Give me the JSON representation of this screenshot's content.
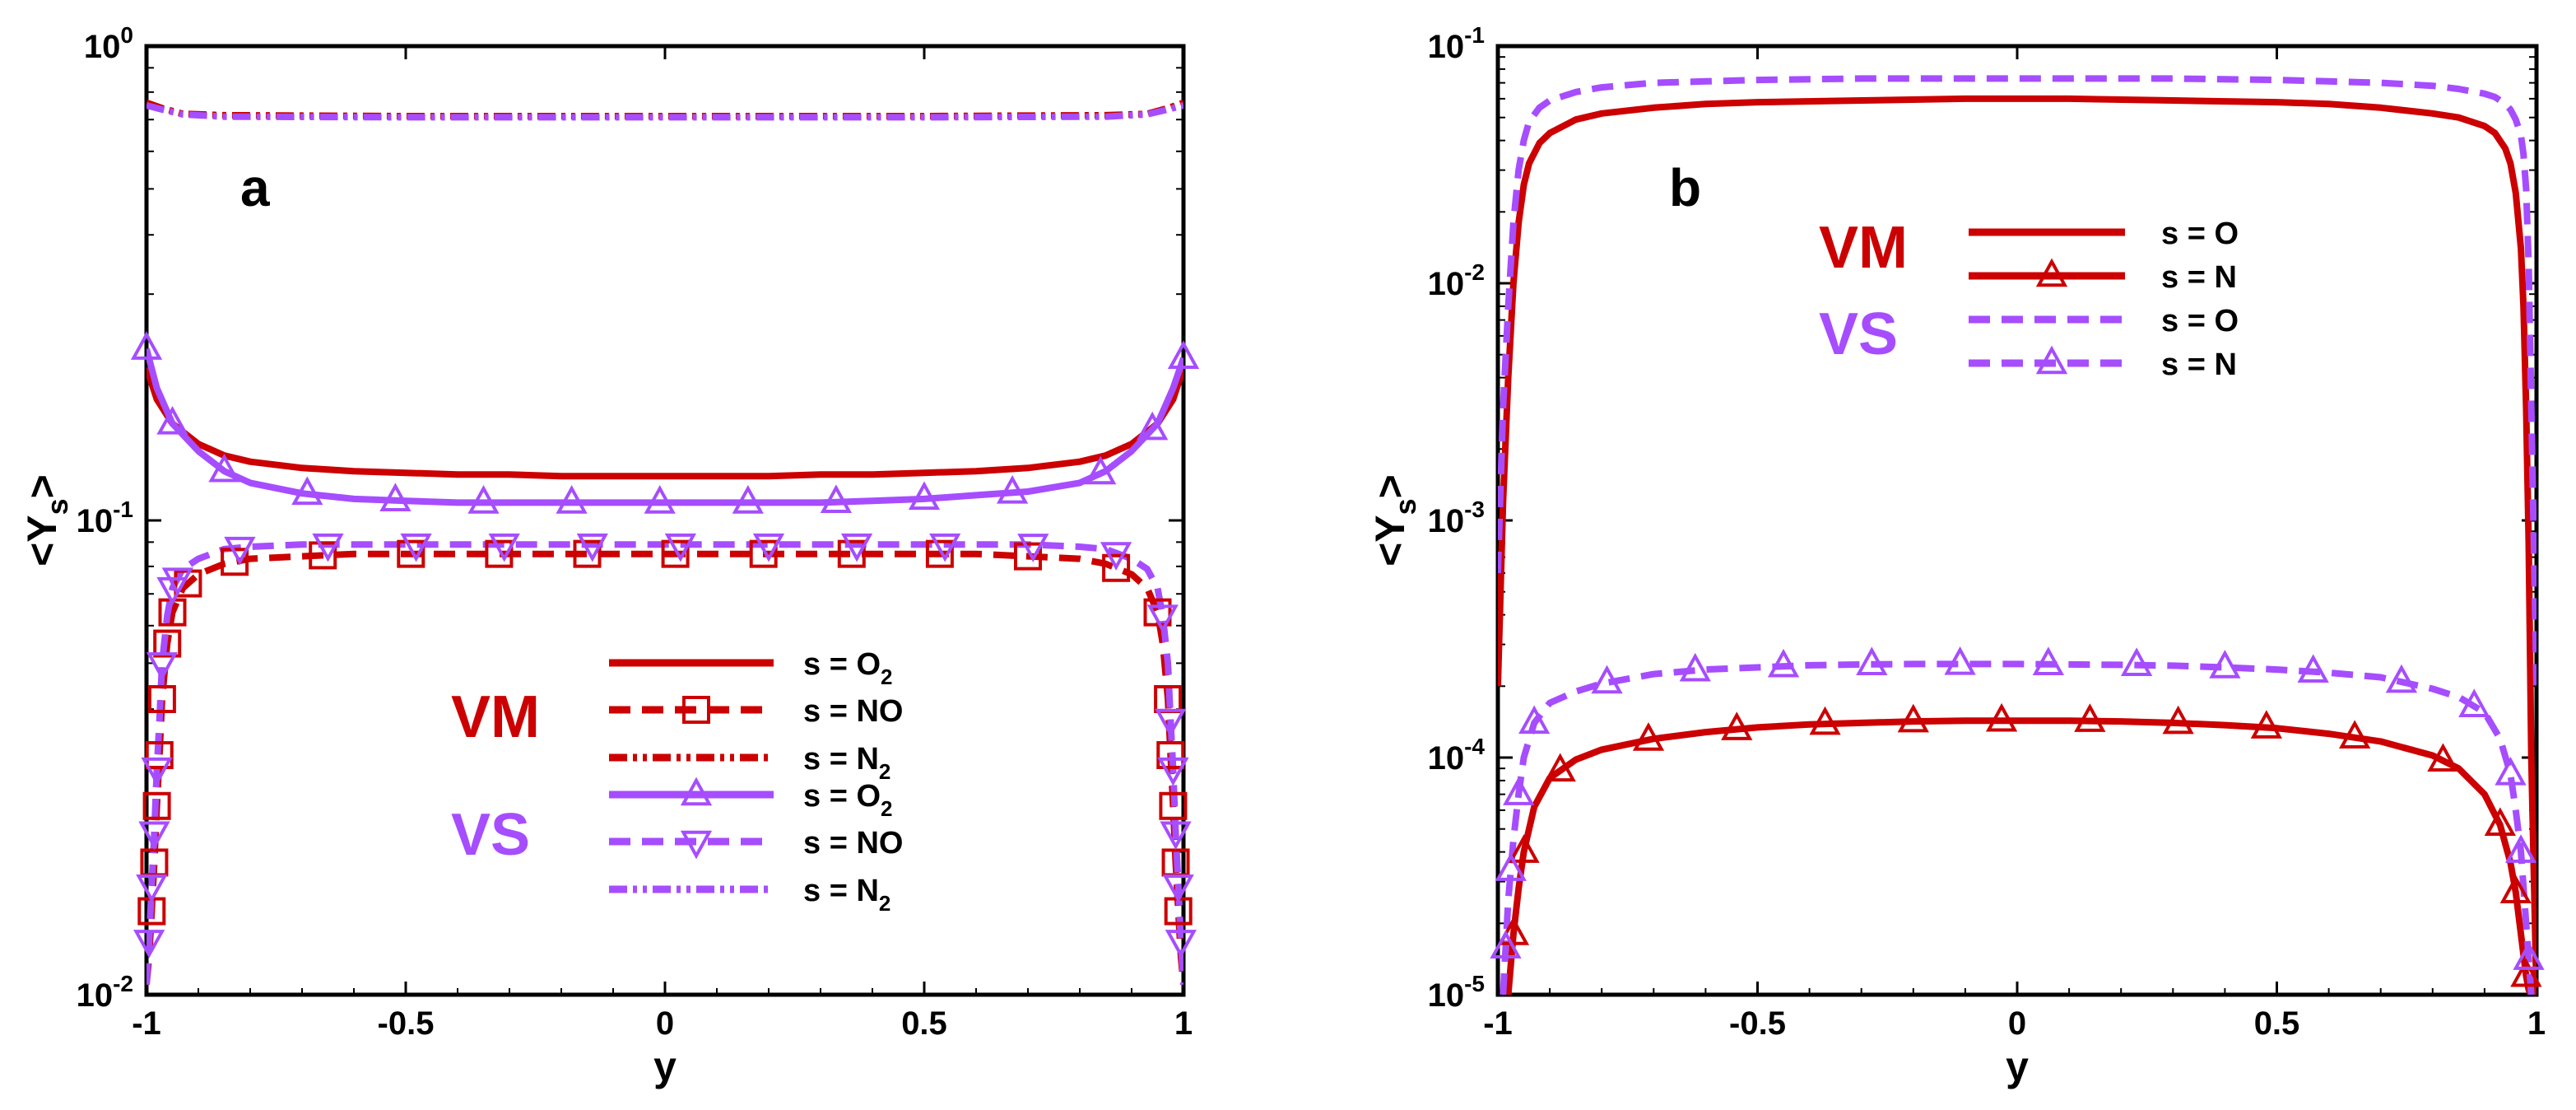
{
  "colors": {
    "vm": "#cc0000",
    "vs": "#a64dff",
    "axis": "#000000"
  },
  "chart_data": [
    {
      "panel_label": "a",
      "type": "line",
      "xlabel": "y",
      "ylabel_main": "<Y",
      "ylabel_sub": "s",
      "ylabel_tail": ">",
      "xlim": [
        -1,
        1
      ],
      "ylim": [
        0.01,
        1
      ],
      "yscale": "log",
      "xticks": [
        -1,
        -0.5,
        0,
        0.5,
        1
      ],
      "xtick_labels": [
        "-1",
        "-0.5",
        "0",
        "0.5",
        "1"
      ],
      "ytick_values": [
        0.01,
        0.1,
        1
      ],
      "ytick_labels": [
        {
          "base": "10",
          "exp": "-2"
        },
        {
          "base": "10",
          "exp": "-1"
        },
        {
          "base": "10",
          "exp": "0"
        }
      ],
      "legend_groups": [
        {
          "label": "VM",
          "color": "#cc0000"
        },
        {
          "label": "VS",
          "color": "#a64dff"
        }
      ],
      "series": [
        {
          "group": "VM",
          "name": "s = O2",
          "label_main": "s = O",
          "label_sub": "2",
          "color": "#cc0000",
          "style": "solid",
          "marker": "none",
          "x": [
            -1,
            -0.98,
            -0.95,
            -0.9,
            -0.85,
            -0.8,
            -0.7,
            -0.6,
            -0.5,
            -0.4,
            -0.3,
            -0.2,
            -0.1,
            0,
            0.1,
            0.2,
            0.3,
            0.4,
            0.5,
            0.6,
            0.7,
            0.8,
            0.85,
            0.9,
            0.95,
            0.98,
            1
          ],
          "y": [
            0.21,
            0.18,
            0.16,
            0.145,
            0.137,
            0.133,
            0.129,
            0.127,
            0.126,
            0.125,
            0.125,
            0.124,
            0.124,
            0.124,
            0.124,
            0.124,
            0.125,
            0.125,
            0.126,
            0.127,
            0.129,
            0.133,
            0.137,
            0.145,
            0.16,
            0.18,
            0.21
          ]
        },
        {
          "group": "VM",
          "name": "s = NO",
          "label_main": "s = NO",
          "label_sub": "",
          "color": "#cc0000",
          "style": "dashed",
          "marker": "square",
          "x": [
            -1,
            -0.995,
            -0.99,
            -0.985,
            -0.98,
            -0.975,
            -0.97,
            -0.96,
            -0.95,
            -0.93,
            -0.9,
            -0.85,
            -0.8,
            -0.7,
            -0.6,
            -0.5,
            -0.4,
            -0.3,
            -0.2,
            -0.1,
            0,
            0.1,
            0.2,
            0.3,
            0.4,
            0.5,
            0.6,
            0.7,
            0.8,
            0.85,
            0.9,
            0.93,
            0.95,
            0.96,
            0.97,
            0.975,
            0.98,
            0.985,
            0.99,
            0.995,
            1
          ],
          "y": [
            0.0105,
            0.012,
            0.015,
            0.019,
            0.025,
            0.032,
            0.042,
            0.055,
            0.064,
            0.072,
            0.077,
            0.081,
            0.083,
            0.084,
            0.085,
            0.085,
            0.085,
            0.085,
            0.085,
            0.085,
            0.085,
            0.085,
            0.085,
            0.085,
            0.085,
            0.085,
            0.085,
            0.084,
            0.083,
            0.081,
            0.077,
            0.072,
            0.064,
            0.055,
            0.042,
            0.032,
            0.025,
            0.019,
            0.015,
            0.012,
            0.0105
          ],
          "marker_x": [
            -0.99,
            -0.985,
            -0.98,
            -0.975,
            -0.97,
            -0.96,
            -0.95,
            -0.92,
            -0.83,
            -0.66,
            -0.49,
            -0.32,
            -0.15,
            0.02,
            0.19,
            0.36,
            0.53,
            0.7,
            0.87,
            0.95,
            0.97,
            0.975,
            0.98,
            0.985,
            0.99
          ]
        },
        {
          "group": "VM",
          "name": "s = N2",
          "label_main": "s = N",
          "label_sub": "2",
          "color": "#cc0000",
          "style": "dashdotdot",
          "marker": "none",
          "x": [
            -1,
            -0.97,
            -0.93,
            -0.85,
            -0.5,
            0,
            0.5,
            0.85,
            0.93,
            0.97,
            1
          ],
          "y": [
            0.76,
            0.74,
            0.72,
            0.715,
            0.712,
            0.712,
            0.712,
            0.715,
            0.72,
            0.74,
            0.76
          ]
        },
        {
          "group": "VS",
          "name": "s = O2",
          "label_main": "s = O",
          "label_sub": "2",
          "color": "#a64dff",
          "style": "solid",
          "marker": "triangle-up",
          "x": [
            -1,
            -0.98,
            -0.95,
            -0.9,
            -0.85,
            -0.8,
            -0.7,
            -0.6,
            -0.5,
            -0.4,
            -0.3,
            -0.2,
            -0.1,
            0,
            0.1,
            0.2,
            0.3,
            0.4,
            0.5,
            0.6,
            0.7,
            0.8,
            0.85,
            0.9,
            0.95,
            0.98,
            1
          ],
          "y": [
            0.23,
            0.19,
            0.16,
            0.14,
            0.127,
            0.12,
            0.114,
            0.111,
            0.11,
            0.109,
            0.109,
            0.109,
            0.109,
            0.109,
            0.109,
            0.109,
            0.109,
            0.11,
            0.111,
            0.113,
            0.115,
            0.12,
            0.127,
            0.14,
            0.16,
            0.19,
            0.22
          ],
          "marker_x": [
            -1,
            -0.95,
            -0.85,
            -0.69,
            -0.52,
            -0.35,
            -0.18,
            -0.01,
            0.16,
            0.33,
            0.5,
            0.67,
            0.84,
            0.94,
            1
          ]
        },
        {
          "group": "VS",
          "name": "s = NO",
          "label_main": "s = NO",
          "label_sub": "",
          "color": "#a64dff",
          "style": "dashed",
          "marker": "triangle-down",
          "x": [
            -1,
            -0.995,
            -0.99,
            -0.985,
            -0.98,
            -0.975,
            -0.97,
            -0.96,
            -0.95,
            -0.93,
            -0.9,
            -0.85,
            -0.8,
            -0.7,
            -0.6,
            -0.5,
            -0.4,
            -0.3,
            -0.2,
            -0.1,
            0,
            0.1,
            0.2,
            0.3,
            0.4,
            0.5,
            0.6,
            0.7,
            0.8,
            0.85,
            0.9,
            0.93,
            0.95,
            0.96,
            0.97,
            0.975,
            0.98,
            0.985,
            0.99,
            0.995,
            1
          ],
          "y": [
            0.0105,
            0.013,
            0.017,
            0.022,
            0.03,
            0.038,
            0.05,
            0.063,
            0.072,
            0.079,
            0.083,
            0.087,
            0.088,
            0.089,
            0.089,
            0.089,
            0.089,
            0.089,
            0.089,
            0.089,
            0.089,
            0.089,
            0.089,
            0.089,
            0.089,
            0.089,
            0.089,
            0.089,
            0.088,
            0.087,
            0.083,
            0.079,
            0.072,
            0.063,
            0.05,
            0.038,
            0.03,
            0.022,
            0.017,
            0.013,
            0.0105
          ],
          "marker_x": [
            -0.995,
            -0.99,
            -0.985,
            -0.98,
            -0.97,
            -0.95,
            -0.94,
            -0.82,
            -0.65,
            -0.48,
            -0.31,
            -0.14,
            0.03,
            0.2,
            0.37,
            0.54,
            0.71,
            0.87,
            0.96,
            0.975,
            0.98,
            0.985,
            0.99,
            0.995
          ]
        },
        {
          "group": "VS",
          "name": "s = N2",
          "label_main": "s = N",
          "label_sub": "2",
          "color": "#a64dff",
          "style": "dashdotdot",
          "marker": "none",
          "x": [
            -1,
            -0.97,
            -0.93,
            -0.85,
            -0.5,
            0,
            0.5,
            0.85,
            0.93,
            0.97,
            1
          ],
          "y": [
            0.75,
            0.735,
            0.718,
            0.71,
            0.708,
            0.708,
            0.708,
            0.71,
            0.718,
            0.735,
            0.75
          ]
        }
      ]
    },
    {
      "panel_label": "b",
      "type": "line",
      "xlabel": "y",
      "ylabel_main": "<Y",
      "ylabel_sub": "s",
      "ylabel_tail": ">",
      "xlim": [
        -1,
        1
      ],
      "ylim": [
        1e-05,
        0.1
      ],
      "yscale": "log",
      "xticks": [
        -1,
        -0.5,
        0,
        0.5,
        1
      ],
      "xtick_labels": [
        "-1",
        "-0.5",
        "0",
        "0.5",
        "1"
      ],
      "ytick_values": [
        1e-05,
        0.0001,
        0.001,
        0.01,
        0.1
      ],
      "ytick_labels": [
        {
          "base": "10",
          "exp": "-5"
        },
        {
          "base": "10",
          "exp": "-4"
        },
        {
          "base": "10",
          "exp": "-3"
        },
        {
          "base": "10",
          "exp": "-2"
        },
        {
          "base": "10",
          "exp": "-1"
        }
      ],
      "legend_groups": [
        {
          "label": "VM",
          "color": "#cc0000"
        },
        {
          "label": "VS",
          "color": "#a64dff"
        }
      ],
      "series": [
        {
          "group": "VM",
          "name": "s = O",
          "label_main": "s = O",
          "label_sub": "",
          "color": "#cc0000",
          "style": "solid",
          "marker": "none",
          "x": [
            -1,
            -0.99,
            -0.98,
            -0.97,
            -0.96,
            -0.95,
            -0.94,
            -0.92,
            -0.9,
            -0.85,
            -0.8,
            -0.7,
            -0.6,
            -0.5,
            -0.3,
            -0.1,
            0,
            0.1,
            0.3,
            0.5,
            0.6,
            0.7,
            0.8,
            0.85,
            0.9,
            0.92,
            0.94,
            0.95,
            0.96,
            0.97,
            0.975,
            0.98,
            0.985,
            0.99,
            1
          ],
          "y": [
            0.0002,
            0.0012,
            0.004,
            0.01,
            0.018,
            0.026,
            0.032,
            0.039,
            0.043,
            0.049,
            0.052,
            0.055,
            0.057,
            0.058,
            0.059,
            0.06,
            0.06,
            0.06,
            0.059,
            0.058,
            0.057,
            0.055,
            0.052,
            0.05,
            0.046,
            0.043,
            0.037,
            0.032,
            0.024,
            0.014,
            0.008,
            0.003,
            0.0008,
            0.0001,
            1e-05
          ]
        },
        {
          "group": "VM",
          "name": "s = N",
          "label_main": "s = N",
          "label_sub": "",
          "color": "#cc0000",
          "style": "solid",
          "marker": "triangle-up",
          "x": [
            -0.98,
            -0.97,
            -0.96,
            -0.95,
            -0.93,
            -0.9,
            -0.85,
            -0.8,
            -0.7,
            -0.6,
            -0.5,
            -0.4,
            -0.3,
            -0.2,
            -0.1,
            0,
            0.1,
            0.2,
            0.3,
            0.4,
            0.5,
            0.6,
            0.7,
            0.8,
            0.85,
            0.9,
            0.93,
            0.95,
            0.96,
            0.97,
            0.98,
            0.985,
            0.99
          ],
          "y": [
            1e-05,
            1.8e-05,
            2.8e-05,
            4e-05,
            6.2e-05,
            8.2e-05,
            9.8e-05,
            0.000108,
            0.00012,
            0.000128,
            0.000134,
            0.000138,
            0.00014,
            0.000142,
            0.000143,
            0.000143,
            0.000143,
            0.000142,
            0.00014,
            0.000137,
            0.000133,
            0.000126,
            0.000117,
            0.000102,
            9e-05,
            7e-05,
            5.2e-05,
            3.6e-05,
            2.7e-05,
            1.8e-05,
            1.2e-05,
            1.05e-05,
            1e-05
          ],
          "marker_x": [
            -0.97,
            -0.95,
            -0.88,
            -0.71,
            -0.54,
            -0.37,
            -0.2,
            -0.03,
            0.14,
            0.31,
            0.48,
            0.65,
            0.82,
            0.93,
            0.96,
            0.98
          ]
        },
        {
          "group": "VS",
          "name": "s = O",
          "label_main": "s = O",
          "label_sub": "",
          "color": "#a64dff",
          "style": "dashed",
          "marker": "none",
          "x": [
            -1,
            -0.99,
            -0.98,
            -0.97,
            -0.96,
            -0.95,
            -0.94,
            -0.92,
            -0.9,
            -0.85,
            -0.8,
            -0.7,
            -0.6,
            -0.5,
            -0.3,
            -0.1,
            0,
            0.1,
            0.3,
            0.5,
            0.6,
            0.7,
            0.8,
            0.85,
            0.9,
            0.92,
            0.94,
            0.95,
            0.96,
            0.97,
            0.975,
            0.98,
            0.985,
            0.99,
            1
          ],
          "y": [
            0.0006,
            0.003,
            0.008,
            0.018,
            0.03,
            0.04,
            0.048,
            0.055,
            0.059,
            0.064,
            0.067,
            0.07,
            0.071,
            0.072,
            0.073,
            0.073,
            0.073,
            0.073,
            0.073,
            0.072,
            0.071,
            0.07,
            0.068,
            0.066,
            0.063,
            0.061,
            0.057,
            0.054,
            0.049,
            0.042,
            0.035,
            0.025,
            0.012,
            0.003,
            0.0002
          ]
        },
        {
          "group": "VS",
          "name": "s = N",
          "label_main": "s = N",
          "label_sub": "",
          "color": "#a64dff",
          "style": "dashed",
          "marker": "triangle-up",
          "x": [
            -0.99,
            -0.98,
            -0.97,
            -0.96,
            -0.95,
            -0.93,
            -0.9,
            -0.85,
            -0.8,
            -0.7,
            -0.6,
            -0.5,
            -0.4,
            -0.3,
            -0.2,
            -0.1,
            0,
            0.1,
            0.2,
            0.3,
            0.4,
            0.5,
            0.6,
            0.7,
            0.8,
            0.85,
            0.9,
            0.93,
            0.95,
            0.96,
            0.97,
            0.98,
            0.99
          ],
          "y": [
            1e-05,
            2.5e-05,
            4.5e-05,
            7e-05,
            0.0001,
            0.00014,
            0.00017,
            0.00019,
            0.000205,
            0.000225,
            0.000235,
            0.00024,
            0.000245,
            0.000247,
            0.000248,
            0.000248,
            0.000248,
            0.000247,
            0.000246,
            0.000244,
            0.00024,
            0.000235,
            0.000228,
            0.000218,
            0.000195,
            0.00018,
            0.000155,
            0.00012,
            8.5e-05,
            6e-05,
            4e-05,
            2e-05,
            1e-05
          ],
          "marker_x": [
            -0.985,
            -0.975,
            -0.96,
            -0.93,
            -0.79,
            -0.62,
            -0.45,
            -0.28,
            -0.11,
            0.06,
            0.23,
            0.4,
            0.57,
            0.74,
            0.88,
            0.95,
            0.97,
            0.985
          ]
        }
      ]
    }
  ]
}
